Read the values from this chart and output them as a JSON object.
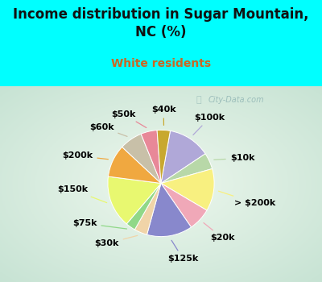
{
  "title": "Income distribution in Sugar Mountain,\nNC (%)",
  "subtitle": "White residents",
  "bg_color": "#00ffff",
  "watermark": "City-Data.com",
  "labels": [
    "$100k",
    "$10k",
    "> $200k",
    "$20k",
    "$125k",
    "$30k",
    "$75k",
    "$150k",
    "$200k",
    "$60k",
    "$50k",
    "$40k"
  ],
  "values": [
    13,
    5,
    13,
    7,
    14,
    4,
    3,
    16,
    10,
    7,
    5,
    4
  ],
  "colors": [
    "#b0a8d8",
    "#b8d8a8",
    "#f8f080",
    "#f0a8b8",
    "#8888cc",
    "#f0d4a8",
    "#90d888",
    "#e8f870",
    "#f0a840",
    "#c8c0a8",
    "#e88898",
    "#c8a830"
  ],
  "title_fontsize": 12,
  "subtitle_fontsize": 10,
  "label_fontsize": 8,
  "startangle": 80
}
